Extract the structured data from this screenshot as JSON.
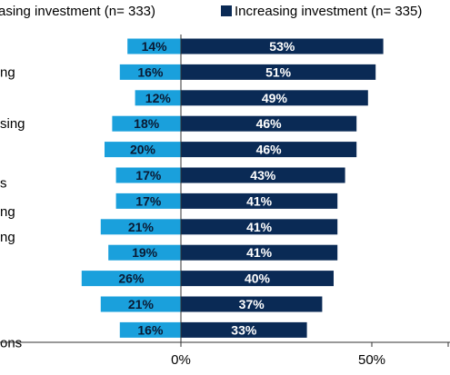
{
  "chart_data": {
    "type": "bar",
    "orientation": "horizontal-diverging",
    "legend_placement": "top",
    "series": [
      {
        "name": "asing investment (n= 333)",
        "color": "#1aa0dc",
        "direction": "negative",
        "values": [
          14,
          16,
          12,
          18,
          20,
          17,
          17,
          21,
          19,
          26,
          21,
          16
        ],
        "labels": [
          "14%",
          "16%",
          "12%",
          "18%",
          "20%",
          "17%",
          "17%",
          "21%",
          "19%",
          "26%",
          "21%",
          "16%"
        ]
      },
      {
        "name": "Increasing investment (n= 335)",
        "color": "#0a2a55",
        "direction": "positive",
        "values": [
          53,
          51,
          49,
          46,
          46,
          43,
          41,
          41,
          41,
          40,
          37,
          33
        ],
        "labels": [
          "53%",
          "51%",
          "49%",
          "46%",
          "46%",
          "43%",
          "41%",
          "41%",
          "41%",
          "40%",
          "37%",
          "33%"
        ]
      }
    ],
    "category_fragments": [
      {
        "row": 1,
        "text": "ng"
      },
      {
        "row": 3,
        "text": "sing"
      },
      {
        "row": 5.3,
        "text": "s"
      },
      {
        "row": 6.4,
        "text": "ng"
      },
      {
        "row": 7.4,
        "text": "ng"
      },
      {
        "row": 11.5,
        "text": "ons"
      }
    ],
    "xaxis": {
      "ticks": [
        -50,
        0,
        50
      ],
      "tick_labels": [
        "%",
        "0%",
        "50%"
      ],
      "xlim": [
        -50,
        70
      ]
    },
    "grid": false
  }
}
